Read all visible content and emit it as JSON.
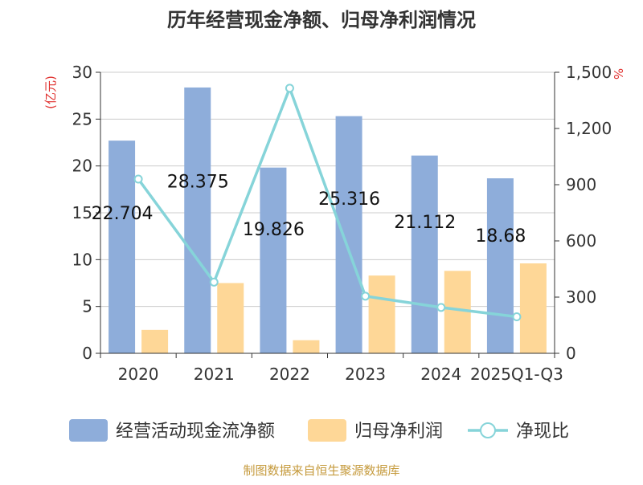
{
  "chart_data": {
    "type": "bar",
    "title": "历年经营现金净额、归母净利润情况",
    "left_axis_unit": "(亿元)",
    "right_axis_unit": "%",
    "categories": [
      "2020",
      "2021",
      "2022",
      "2023",
      "2024",
      "2025Q1-Q3"
    ],
    "left_ylim": [
      0,
      30
    ],
    "left_ticks": [
      0,
      5,
      10,
      15,
      20,
      25,
      30
    ],
    "right_ylim": [
      0,
      1500
    ],
    "right_ticks": [
      0,
      300,
      600,
      900,
      1200,
      1500
    ],
    "right_tick_labels": [
      "0",
      "300",
      "600",
      "900",
      "1,200",
      "1,500"
    ],
    "grid": true,
    "legend_position": "bottom",
    "series": [
      {
        "name": "经营活动现金流净额",
        "type": "bar",
        "axis": "left",
        "color": "#8eadda",
        "values": [
          22.704,
          28.375,
          19.826,
          25.316,
          21.112,
          18.68
        ],
        "labels": [
          "22.704",
          "28.375",
          "19.826",
          "25.316",
          "21.112",
          "18.68"
        ]
      },
      {
        "name": "归母净利润",
        "type": "bar",
        "axis": "left",
        "color": "#fed797",
        "values": [
          2.5,
          7.5,
          1.4,
          8.3,
          8.8,
          9.6
        ]
      },
      {
        "name": "净现比",
        "type": "line",
        "axis": "right",
        "color": "#86d4d9",
        "values": [
          930,
          380,
          1415,
          305,
          245,
          195
        ]
      }
    ]
  },
  "source_text": "制图数据来自恒生聚源数据库",
  "colors": {
    "title": "#333333",
    "unit_label": "#e0302e",
    "axis_text": "#333333",
    "grid": "#cccccc",
    "source_text": "#c59a3c"
  }
}
